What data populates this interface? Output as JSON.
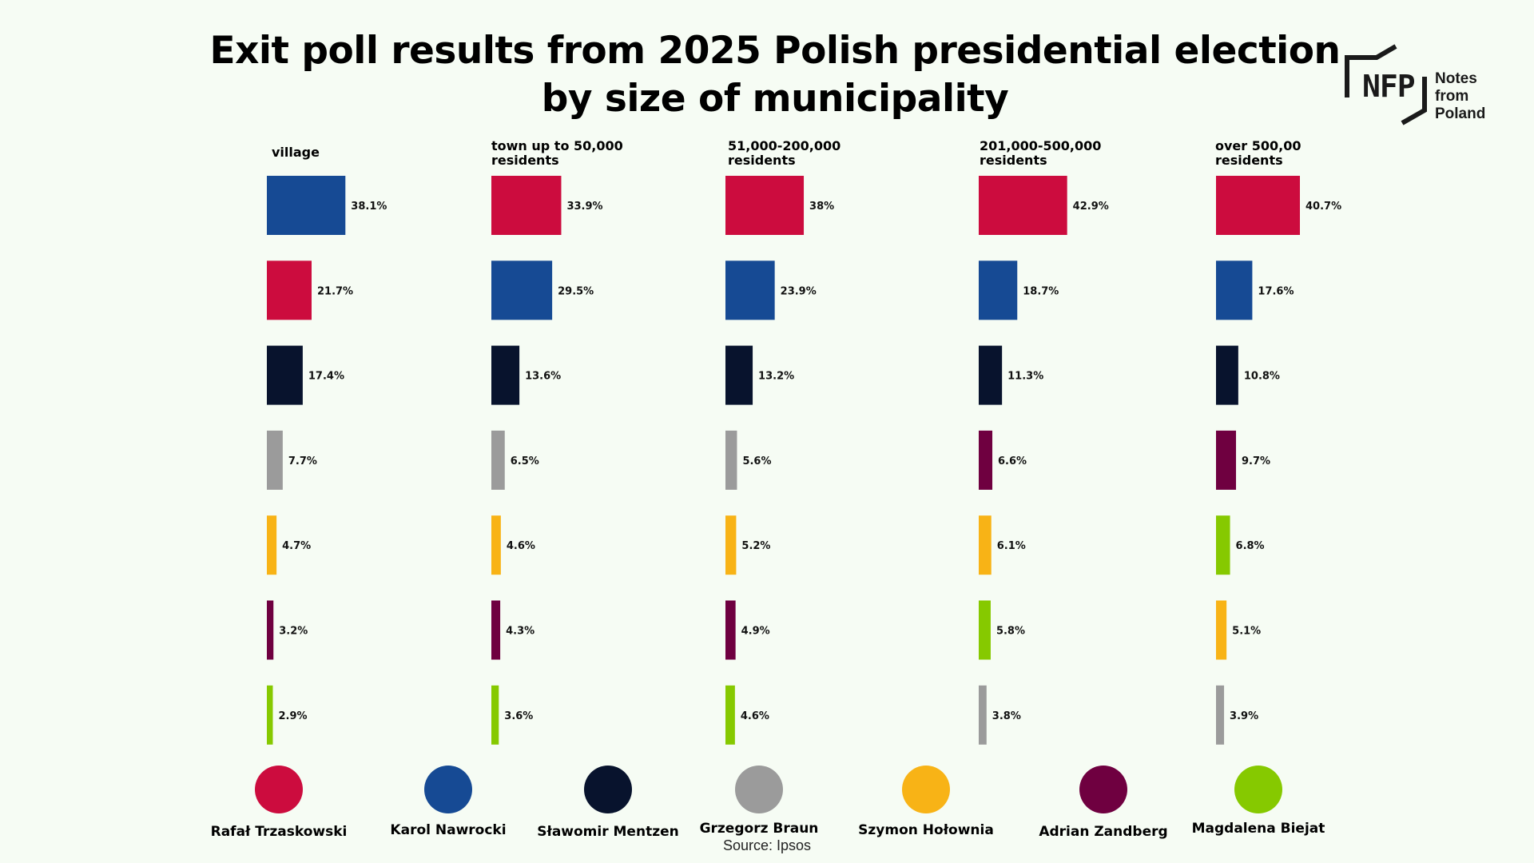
{
  "chart_data": {
    "type": "bar",
    "title": "Exit poll results from 2025 Polish presidential election",
    "subtitle": "by size of municipality",
    "source": "Source: Ipsos",
    "value_suffix": "%",
    "candidates": [
      {
        "name": "Rafał Trzaskowski",
        "color": "#cc0c3e"
      },
      {
        "name": "Karol Nawrocki",
        "color": "#164a94"
      },
      {
        "name": "Sławomir Mentzen",
        "color": "#08132d"
      },
      {
        "name": "Grzegorz Braun",
        "color": "#9b9b9b"
      },
      {
        "name": "Szymon Hołownia",
        "color": "#f8b316"
      },
      {
        "name": "Adrian Zandberg",
        "color": "#6f0040"
      },
      {
        "name": "Magdalena Biejat",
        "color": "#86c900"
      }
    ],
    "groups": [
      {
        "title_lines": [
          "village"
        ],
        "bars": [
          {
            "candidate": "Karol Nawrocki",
            "value": 38.1,
            "label": "38.1%"
          },
          {
            "candidate": "Rafał Trzaskowski",
            "value": 21.7,
            "label": "21.7%"
          },
          {
            "candidate": "Sławomir Mentzen",
            "value": 17.4,
            "label": "17.4%"
          },
          {
            "candidate": "Grzegorz Braun",
            "value": 7.7,
            "label": "7.7%"
          },
          {
            "candidate": "Szymon Hołownia",
            "value": 4.7,
            "label": "4.7%"
          },
          {
            "candidate": "Adrian Zandberg",
            "value": 3.2,
            "label": "3.2%"
          },
          {
            "candidate": "Magdalena Biejat",
            "value": 2.9,
            "label": "2.9%"
          }
        ]
      },
      {
        "title_lines": [
          "town up to 50,000",
          "residents"
        ],
        "bars": [
          {
            "candidate": "Rafał Trzaskowski",
            "value": 33.9,
            "label": "33.9%"
          },
          {
            "candidate": "Karol Nawrocki",
            "value": 29.5,
            "label": "29.5%"
          },
          {
            "candidate": "Sławomir Mentzen",
            "value": 13.6,
            "label": "13.6%"
          },
          {
            "candidate": "Grzegorz Braun",
            "value": 6.5,
            "label": "6.5%"
          },
          {
            "candidate": "Szymon Hołownia",
            "value": 4.6,
            "label": "4.6%"
          },
          {
            "candidate": "Adrian Zandberg",
            "value": 4.3,
            "label": "4.3%"
          },
          {
            "candidate": "Magdalena Biejat",
            "value": 3.6,
            "label": "3.6%"
          }
        ]
      },
      {
        "title_lines": [
          "51,000-200,000",
          "residents"
        ],
        "bars": [
          {
            "candidate": "Rafał Trzaskowski",
            "value": 38,
            "label": "38%"
          },
          {
            "candidate": "Karol Nawrocki",
            "value": 23.9,
            "label": "23.9%"
          },
          {
            "candidate": "Sławomir Mentzen",
            "value": 13.2,
            "label": "13.2%"
          },
          {
            "candidate": "Grzegorz Braun",
            "value": 5.6,
            "label": "5.6%"
          },
          {
            "candidate": "Szymon Hołownia",
            "value": 5.2,
            "label": "5.2%"
          },
          {
            "candidate": "Adrian Zandberg",
            "value": 4.9,
            "label": "4.9%"
          },
          {
            "candidate": "Magdalena Biejat",
            "value": 4.6,
            "label": "4.6%"
          }
        ]
      },
      {
        "title_lines": [
          "201,000-500,000",
          "residents"
        ],
        "bars": [
          {
            "candidate": "Rafał Trzaskowski",
            "value": 42.9,
            "label": "42.9%"
          },
          {
            "candidate": "Karol Nawrocki",
            "value": 18.7,
            "label": "18.7%"
          },
          {
            "candidate": "Sławomir Mentzen",
            "value": 11.3,
            "label": "11.3%"
          },
          {
            "candidate": "Adrian Zandberg",
            "value": 6.6,
            "label": "6.6%"
          },
          {
            "candidate": "Szymon Hołownia",
            "value": 6.1,
            "label": "6.1%"
          },
          {
            "candidate": "Magdalena Biejat",
            "value": 5.8,
            "label": "5.8%"
          },
          {
            "candidate": "Grzegorz Braun",
            "value": 3.8,
            "label": "3.8%"
          }
        ]
      },
      {
        "title_lines": [
          "over 500,00",
          "residents"
        ],
        "bars": [
          {
            "candidate": "Rafał Trzaskowski",
            "value": 40.7,
            "label": "40.7%"
          },
          {
            "candidate": "Karol Nawrocki",
            "value": 17.6,
            "label": "17.6%"
          },
          {
            "candidate": "Sławomir Mentzen",
            "value": 10.8,
            "label": "10.8%"
          },
          {
            "candidate": "Adrian Zandberg",
            "value": 9.7,
            "label": "9.7%"
          },
          {
            "candidate": "Magdalena Biejat",
            "value": 6.8,
            "label": "6.8%"
          },
          {
            "candidate": "Szymon Hołownia",
            "value": 5.1,
            "label": "5.1%"
          },
          {
            "candidate": "Grzegorz Braun",
            "value": 3.9,
            "label": "3.9%"
          }
        ]
      }
    ]
  },
  "logo": {
    "letters": "NFP",
    "words_line1": "Notes from",
    "words_line2": "Poland"
  }
}
